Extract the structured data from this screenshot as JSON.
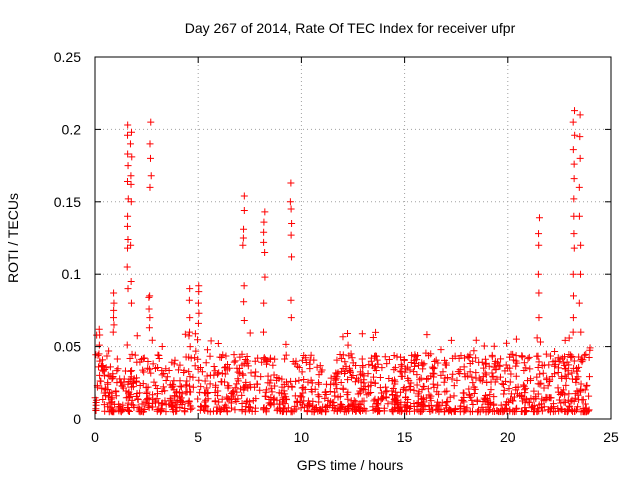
{
  "chart_data": {
    "type": "scatter",
    "title": "Day 267 of 2014, Rate Of TEC Index for receiver ufpr",
    "xlabel": "GPS time / hours",
    "ylabel": "ROTI / TECUs",
    "xlim": [
      0,
      25
    ],
    "ylim": [
      0,
      0.25
    ],
    "xticks": [
      0,
      5,
      10,
      15,
      20,
      25
    ],
    "xtick_labels": [
      "0",
      "5",
      "10",
      "15",
      "20",
      "25"
    ],
    "yticks": [
      0,
      0.05,
      0.1,
      0.15,
      0.2,
      0.25
    ],
    "ytick_labels": [
      "0",
      "0.05",
      "0.1",
      "0.15",
      "0.2",
      "0.25"
    ],
    "grid": true,
    "marker": "+",
    "color": "#ff0000",
    "series": [
      {
        "name": "ROTI",
        "spikes": [
          {
            "x": 0.2,
            "y": [
              0.058,
              0.062,
              0.051,
              0.045,
              0.04,
              0.036
            ]
          },
          {
            "x": 0.9,
            "y": [
              0.087,
              0.08,
              0.075,
              0.07,
              0.065,
              0.06
            ]
          },
          {
            "x": 1.6,
            "y": [
              0.203,
              0.196,
              0.183,
              0.175,
              0.164,
              0.152,
              0.14,
              0.133,
              0.124,
              0.118,
              0.105,
              0.09
            ]
          },
          {
            "x": 1.75,
            "y": [
              0.198,
              0.19,
              0.181,
              0.168,
              0.162,
              0.15,
              0.12,
              0.095,
              0.08
            ]
          },
          {
            "x": 2.7,
            "y": [
              0.205,
              0.19,
              0.18,
              0.168,
              0.16
            ]
          },
          {
            "x": 2.65,
            "y": [
              0.085,
              0.084,
              0.076,
              0.07,
              0.063
            ]
          },
          {
            "x": 4.6,
            "y": [
              0.09,
              0.082,
              0.07,
              0.06,
              0.05
            ]
          },
          {
            "x": 5.0,
            "y": [
              0.092,
              0.088,
              0.08,
              0.073,
              0.066
            ]
          },
          {
            "x": 7.2,
            "y": [
              0.154,
              0.144,
              0.131,
              0.125,
              0.12,
              0.092,
              0.081,
              0.068
            ]
          },
          {
            "x": 8.2,
            "y": [
              0.143,
              0.136,
              0.129,
              0.122,
              0.115,
              0.098,
              0.08,
              0.06
            ]
          },
          {
            "x": 9.5,
            "y": [
              0.163,
              0.15,
              0.145,
              0.135,
              0.127,
              0.112,
              0.082,
              0.07
            ]
          },
          {
            "x": 21.5,
            "y": [
              0.139,
              0.128,
              0.12,
              0.1,
              0.087,
              0.07
            ]
          },
          {
            "x": 23.2,
            "y": [
              0.213,
              0.205,
              0.196,
              0.186,
              0.176,
              0.166,
              0.152,
              0.14,
              0.128,
              0.118,
              0.1,
              0.085,
              0.07,
              0.06
            ]
          },
          {
            "x": 23.5,
            "y": [
              0.21,
              0.195,
              0.18,
              0.16,
              0.14,
              0.12,
              0.1,
              0.08,
              0.06
            ]
          }
        ],
        "background": {
          "x_range": [
            0,
            24
          ],
          "y_typical": [
            0.005,
            0.045
          ],
          "description": "dense band of points between roughly 0.005 and 0.05 across the full day"
        }
      }
    ]
  }
}
